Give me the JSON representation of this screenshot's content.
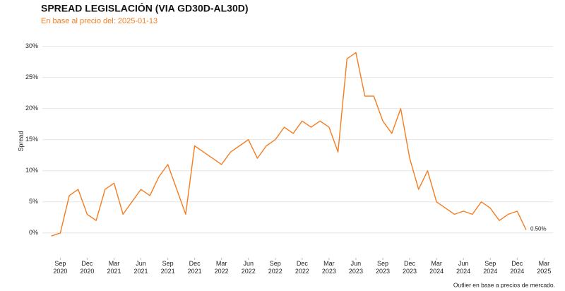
{
  "chart_data": {
    "type": "line",
    "title": "SPREAD LEGISLACIÓN (VIA GD30D-AL30D)",
    "subtitle": "En base al precio del: 2025-01-13",
    "y_label": "Spread",
    "footnote": "Outlier en base a precios de mercado.",
    "x": [
      "2020-08",
      "2020-09",
      "2020-10",
      "2020-11",
      "2020-12",
      "2021-01",
      "2021-02",
      "2021-03",
      "2021-04",
      "2021-05",
      "2021-06",
      "2021-07",
      "2021-08",
      "2021-09",
      "2021-10",
      "2021-11",
      "2021-12",
      "2022-01",
      "2022-02",
      "2022-03",
      "2022-04",
      "2022-05",
      "2022-06",
      "2022-07",
      "2022-08",
      "2022-09",
      "2022-10",
      "2022-11",
      "2022-12",
      "2023-01",
      "2023-02",
      "2023-03",
      "2023-04",
      "2023-05",
      "2023-06",
      "2023-07",
      "2023-08",
      "2023-09",
      "2023-10",
      "2023-11",
      "2023-12",
      "2024-01",
      "2024-02",
      "2024-03",
      "2024-04",
      "2024-05",
      "2024-06",
      "2024-07",
      "2024-08",
      "2024-09",
      "2024-10",
      "2024-11",
      "2024-12",
      "2025-01"
    ],
    "series": [
      {
        "name": "Spread",
        "color": "#f57c1f",
        "values": [
          -0.5,
          0,
          6,
          7,
          3,
          2,
          7,
          8,
          3,
          5,
          7,
          6,
          9,
          11,
          7,
          3,
          14,
          13,
          12,
          11,
          13,
          14,
          15,
          12,
          14,
          15,
          17,
          16,
          18,
          17,
          18,
          17,
          13,
          28,
          29,
          22,
          22,
          18,
          16,
          20,
          12,
          7,
          10,
          5,
          4,
          3,
          3.5,
          3,
          5,
          4,
          2,
          3,
          3.5,
          0.5
        ],
        "value_labels": [
          null,
          null,
          null,
          null,
          null,
          null,
          null,
          null,
          null,
          null,
          null,
          null,
          null,
          null,
          null,
          null,
          null,
          null,
          null,
          null,
          null,
          null,
          null,
          null,
          null,
          null,
          null,
          null,
          null,
          null,
          null,
          null,
          null,
          null,
          null,
          null,
          null,
          null,
          null,
          null,
          null,
          null,
          null,
          null,
          null,
          null,
          null,
          null,
          null,
          null,
          null,
          null,
          null,
          "0.50%"
        ]
      }
    ],
    "xlim": [
      "2020-07",
      "2025-04"
    ],
    "xticks": [
      {
        "value": "2020-09",
        "label": "Sep 2020"
      },
      {
        "value": "2020-12",
        "label": "Dec 2020"
      },
      {
        "value": "2021-03",
        "label": "Mar 2021"
      },
      {
        "value": "2021-06",
        "label": "Jun 2021"
      },
      {
        "value": "2021-09",
        "label": "Sep 2021"
      },
      {
        "value": "2021-12",
        "label": "Dec 2021"
      },
      {
        "value": "2022-03",
        "label": "Mar 2022"
      },
      {
        "value": "2022-06",
        "label": "Jun 2022"
      },
      {
        "value": "2022-09",
        "label": "Sep 2022"
      },
      {
        "value": "2022-12",
        "label": "Dec 2022"
      },
      {
        "value": "2023-03",
        "label": "Mar 2023"
      },
      {
        "value": "2023-06",
        "label": "Jun 2023"
      },
      {
        "value": "2023-09",
        "label": "Sep 2023"
      },
      {
        "value": "2023-12",
        "label": "Dec 2023"
      },
      {
        "value": "2024-03",
        "label": "Mar 2024"
      },
      {
        "value": "2024-06",
        "label": "Jun 2024"
      },
      {
        "value": "2024-09",
        "label": "Sep 2024"
      },
      {
        "value": "2024-12",
        "label": "Dec 2024"
      },
      {
        "value": "2025-03",
        "label": "Mar 2025"
      }
    ],
    "ylim": [
      -4,
      32
    ],
    "yticks": [
      {
        "value": 0,
        "label": "0%"
      },
      {
        "value": 5,
        "label": "5%"
      },
      {
        "value": 10,
        "label": "10%"
      },
      {
        "value": 15,
        "label": "15%"
      },
      {
        "value": 20,
        "label": "20%"
      },
      {
        "value": 25,
        "label": "25%"
      },
      {
        "value": 30,
        "label": "30%"
      }
    ],
    "grid": true
  }
}
